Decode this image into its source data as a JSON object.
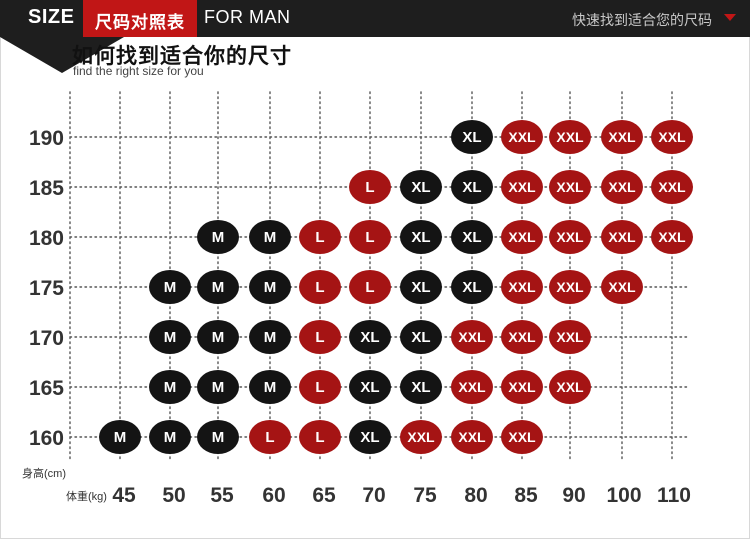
{
  "header": {
    "size_label": "SIZE",
    "chart_name": "尺码对照表",
    "audience": "FOR MAN",
    "tagline": "快速找到适合您的尺码",
    "arrow_icon": "chevron-down-icon"
  },
  "title": {
    "chinese": "如何找到适合你的尺寸",
    "english": "find the right size for you"
  },
  "colors": {
    "header_bg": "#1e1e1e",
    "accent_red": "#c11616",
    "marker_black": "#141414",
    "marker_red": "#a51414"
  },
  "chart_data": {
    "type": "table",
    "ylabel": "身高(cm)",
    "xlabel": "体重(kg)",
    "x": [
      45,
      50,
      55,
      60,
      65,
      70,
      75,
      80,
      85,
      90,
      100,
      110
    ],
    "y": [
      190,
      185,
      180,
      175,
      170,
      165,
      160
    ],
    "grid": "dotted",
    "cells": [
      {
        "height": 190,
        "weight": 80,
        "size": "XL",
        "color": "black"
      },
      {
        "height": 190,
        "weight": 85,
        "size": "XXL",
        "color": "red"
      },
      {
        "height": 190,
        "weight": 90,
        "size": "XXL",
        "color": "red"
      },
      {
        "height": 190,
        "weight": 100,
        "size": "XXL",
        "color": "red"
      },
      {
        "height": 190,
        "weight": 110,
        "size": "XXL",
        "color": "red"
      },
      {
        "height": 185,
        "weight": 70,
        "size": "L",
        "color": "red"
      },
      {
        "height": 185,
        "weight": 75,
        "size": "XL",
        "color": "black"
      },
      {
        "height": 185,
        "weight": 80,
        "size": "XL",
        "color": "black"
      },
      {
        "height": 185,
        "weight": 85,
        "size": "XXL",
        "color": "red"
      },
      {
        "height": 185,
        "weight": 90,
        "size": "XXL",
        "color": "red"
      },
      {
        "height": 185,
        "weight": 100,
        "size": "XXL",
        "color": "red"
      },
      {
        "height": 185,
        "weight": 110,
        "size": "XXL",
        "color": "red"
      },
      {
        "height": 180,
        "weight": 55,
        "size": "M",
        "color": "black"
      },
      {
        "height": 180,
        "weight": 60,
        "size": "M",
        "color": "black"
      },
      {
        "height": 180,
        "weight": 65,
        "size": "L",
        "color": "red"
      },
      {
        "height": 180,
        "weight": 70,
        "size": "L",
        "color": "red"
      },
      {
        "height": 180,
        "weight": 75,
        "size": "XL",
        "color": "black"
      },
      {
        "height": 180,
        "weight": 80,
        "size": "XL",
        "color": "black"
      },
      {
        "height": 180,
        "weight": 85,
        "size": "XXL",
        "color": "red"
      },
      {
        "height": 180,
        "weight": 90,
        "size": "XXL",
        "color": "red"
      },
      {
        "height": 180,
        "weight": 100,
        "size": "XXL",
        "color": "red"
      },
      {
        "height": 180,
        "weight": 110,
        "size": "XXL",
        "color": "red"
      },
      {
        "height": 175,
        "weight": 50,
        "size": "M",
        "color": "black"
      },
      {
        "height": 175,
        "weight": 55,
        "size": "M",
        "color": "black"
      },
      {
        "height": 175,
        "weight": 60,
        "size": "M",
        "color": "black"
      },
      {
        "height": 175,
        "weight": 65,
        "size": "L",
        "color": "red"
      },
      {
        "height": 175,
        "weight": 70,
        "size": "L",
        "color": "red"
      },
      {
        "height": 175,
        "weight": 75,
        "size": "XL",
        "color": "black"
      },
      {
        "height": 175,
        "weight": 80,
        "size": "XL",
        "color": "black"
      },
      {
        "height": 175,
        "weight": 85,
        "size": "XXL",
        "color": "red"
      },
      {
        "height": 175,
        "weight": 90,
        "size": "XXL",
        "color": "red"
      },
      {
        "height": 175,
        "weight": 100,
        "size": "XXL",
        "color": "red"
      },
      {
        "height": 170,
        "weight": 50,
        "size": "M",
        "color": "black"
      },
      {
        "height": 170,
        "weight": 55,
        "size": "M",
        "color": "black"
      },
      {
        "height": 170,
        "weight": 60,
        "size": "M",
        "color": "black"
      },
      {
        "height": 170,
        "weight": 65,
        "size": "L",
        "color": "red"
      },
      {
        "height": 170,
        "weight": 70,
        "size": "XL",
        "color": "black"
      },
      {
        "height": 170,
        "weight": 75,
        "size": "XL",
        "color": "black"
      },
      {
        "height": 170,
        "weight": 80,
        "size": "XXL",
        "color": "red"
      },
      {
        "height": 170,
        "weight": 85,
        "size": "XXL",
        "color": "red"
      },
      {
        "height": 170,
        "weight": 90,
        "size": "XXL",
        "color": "red"
      },
      {
        "height": 165,
        "weight": 50,
        "size": "M",
        "color": "black"
      },
      {
        "height": 165,
        "weight": 55,
        "size": "M",
        "color": "black"
      },
      {
        "height": 165,
        "weight": 60,
        "size": "M",
        "color": "black"
      },
      {
        "height": 165,
        "weight": 65,
        "size": "L",
        "color": "red"
      },
      {
        "height": 165,
        "weight": 70,
        "size": "XL",
        "color": "black"
      },
      {
        "height": 165,
        "weight": 75,
        "size": "XL",
        "color": "black"
      },
      {
        "height": 165,
        "weight": 80,
        "size": "XXL",
        "color": "red"
      },
      {
        "height": 165,
        "weight": 85,
        "size": "XXL",
        "color": "red"
      },
      {
        "height": 165,
        "weight": 90,
        "size": "XXL",
        "color": "red"
      },
      {
        "height": 160,
        "weight": 45,
        "size": "M",
        "color": "black"
      },
      {
        "height": 160,
        "weight": 50,
        "size": "M",
        "color": "black"
      },
      {
        "height": 160,
        "weight": 55,
        "size": "M",
        "color": "black"
      },
      {
        "height": 160,
        "weight": 60,
        "size": "L",
        "color": "red"
      },
      {
        "height": 160,
        "weight": 65,
        "size": "L",
        "color": "red"
      },
      {
        "height": 160,
        "weight": 70,
        "size": "XL",
        "color": "black"
      },
      {
        "height": 160,
        "weight": 75,
        "size": "XXL",
        "color": "red"
      },
      {
        "height": 160,
        "weight": 80,
        "size": "XXL",
        "color": "red"
      },
      {
        "height": 160,
        "weight": 85,
        "size": "XXL",
        "color": "red"
      }
    ]
  }
}
